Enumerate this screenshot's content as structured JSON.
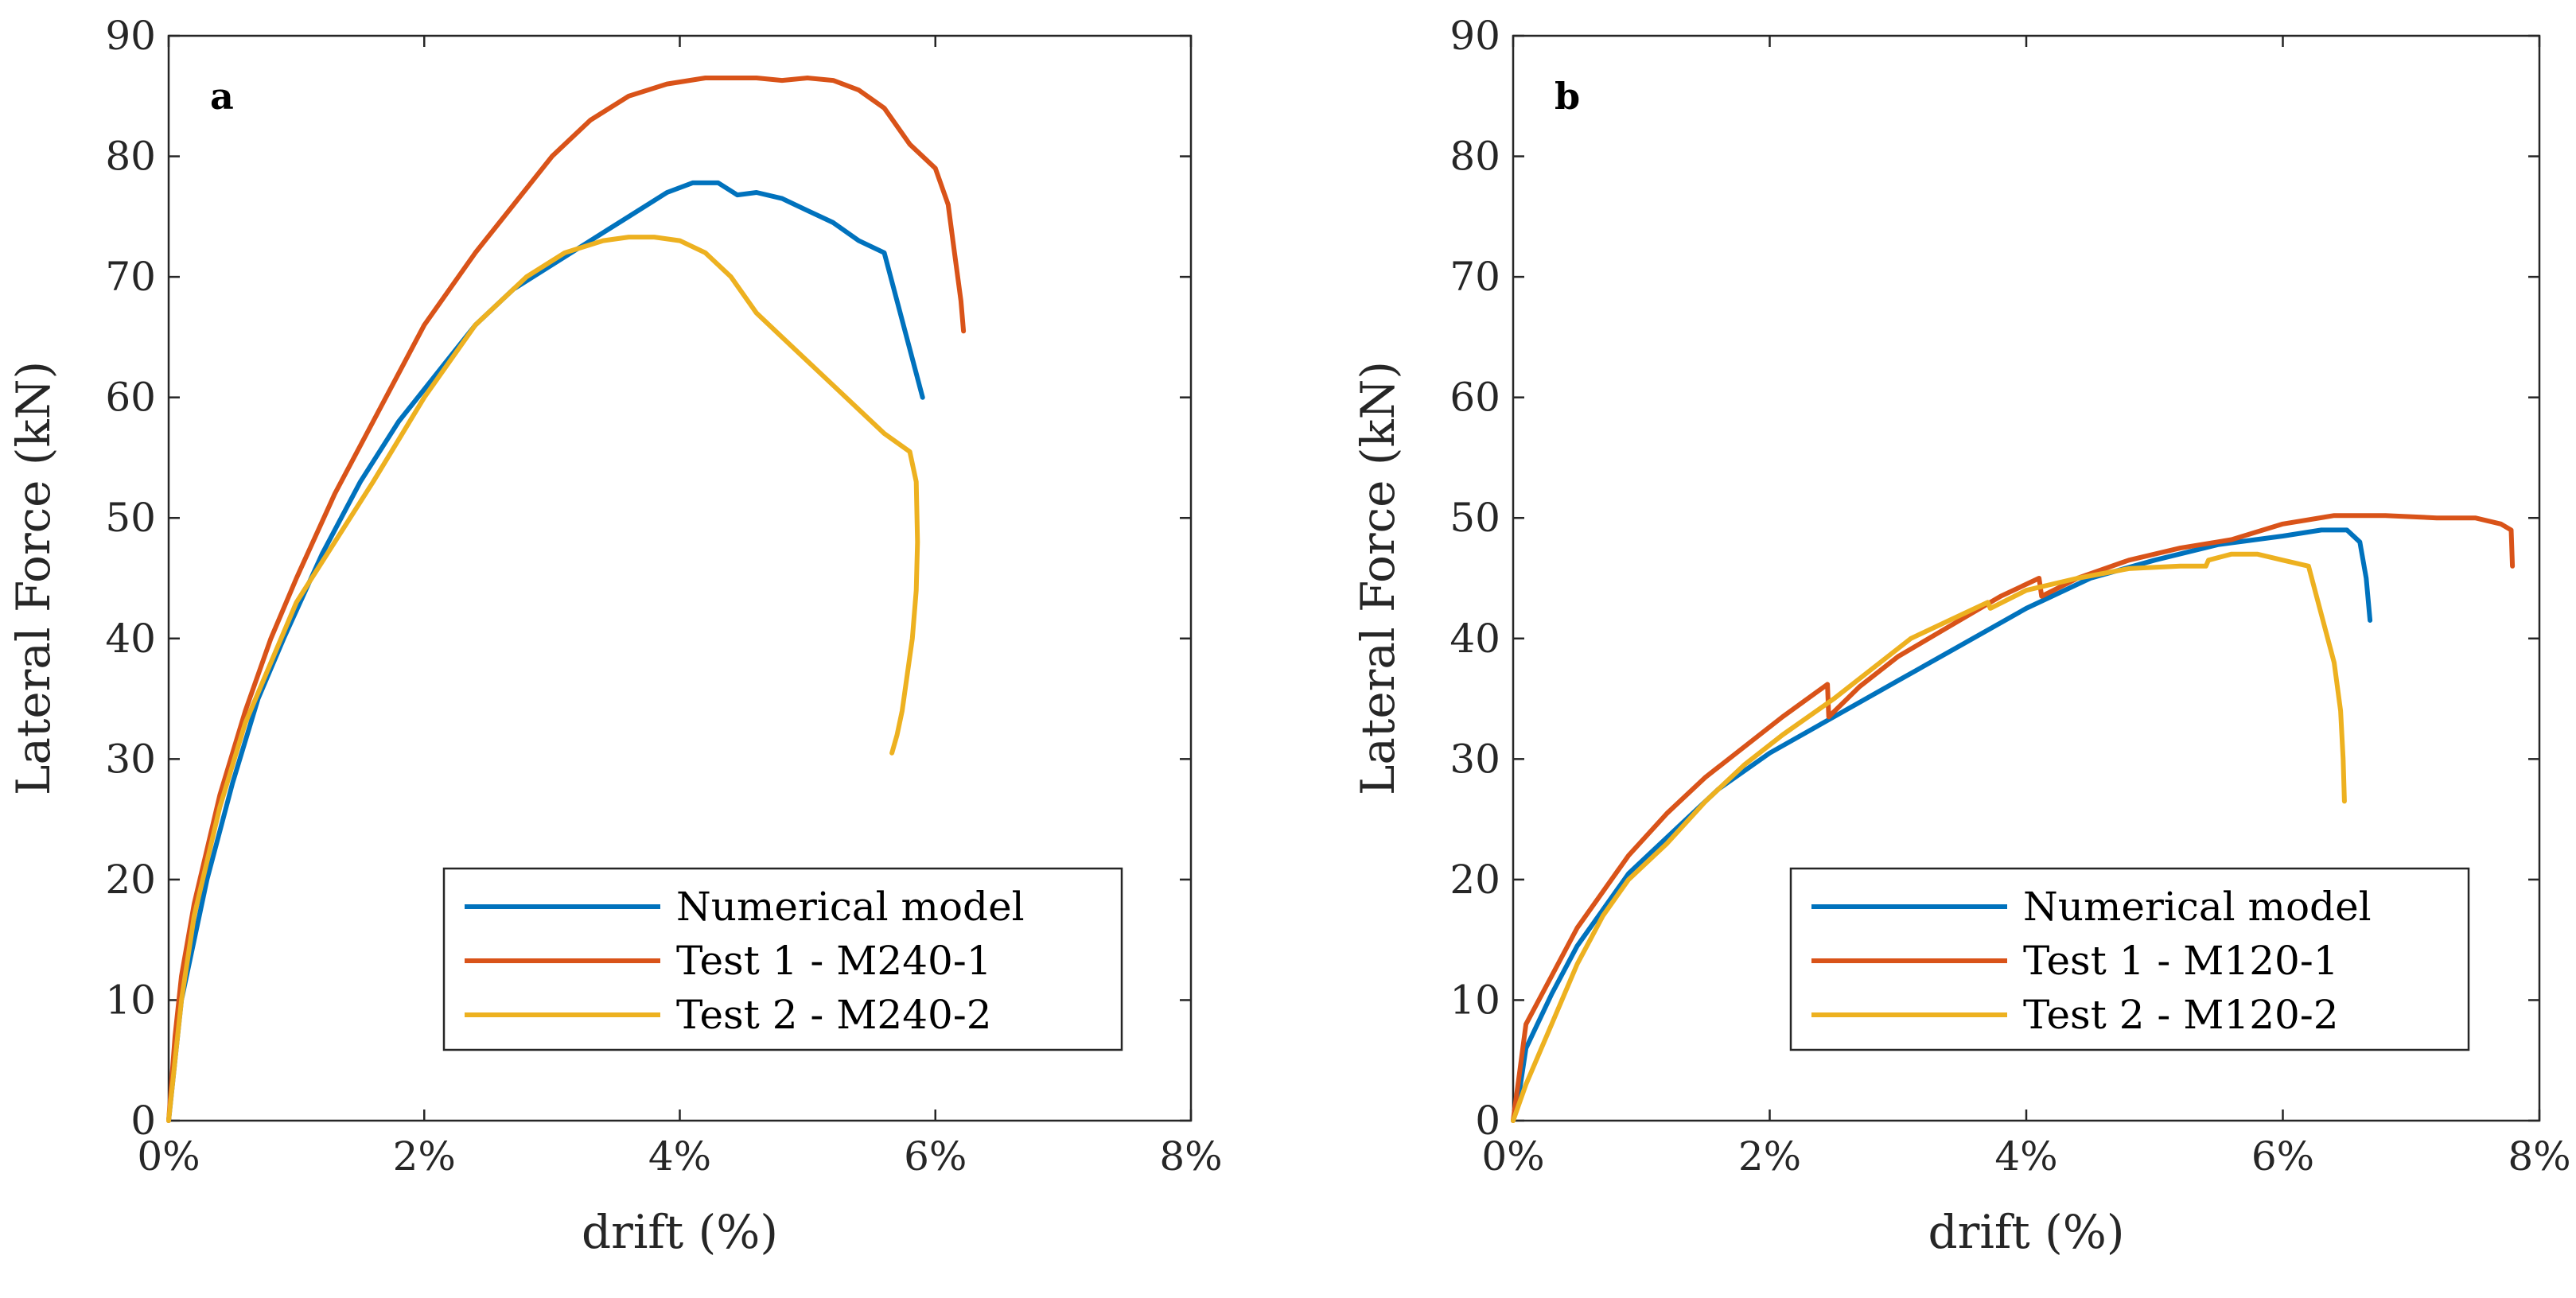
{
  "chart_data": [
    {
      "type": "line",
      "panel_label": "a",
      "xlabel": "drift (%)",
      "ylabel": "Lateral Force (kN)",
      "xlim": [
        0,
        8
      ],
      "ylim": [
        0,
        90
      ],
      "xticks": [
        0,
        2,
        4,
        6,
        8
      ],
      "xtick_labels": [
        "0%",
        "2%",
        "4%",
        "6%",
        "8%"
      ],
      "yticks": [
        0,
        10,
        20,
        30,
        40,
        50,
        60,
        70,
        80,
        90
      ],
      "ytick_labels": [
        "0",
        "10",
        "20",
        "30",
        "40",
        "50",
        "60",
        "70",
        "80",
        "90"
      ],
      "grid": false,
      "legend_position": "bottom-right",
      "series": [
        {
          "name": "Numerical model",
          "color": "#0072BD",
          "x": [
            0,
            0.05,
            0.1,
            0.2,
            0.3,
            0.5,
            0.7,
            0.9,
            1.2,
            1.5,
            1.8,
            2.1,
            2.4,
            2.7,
            3.0,
            3.3,
            3.6,
            3.9,
            4.1,
            4.3,
            4.45,
            4.6,
            4.8,
            5.0,
            5.2,
            5.4,
            5.6,
            5.75,
            5.9
          ],
          "y": [
            0,
            5,
            10,
            15,
            20,
            28,
            35,
            40,
            47,
            53,
            58,
            62,
            66,
            69,
            71,
            73,
            75,
            77,
            77.8,
            77.8,
            76.8,
            77,
            76.5,
            75.5,
            74.5,
            73,
            72,
            66,
            60
          ]
        },
        {
          "name": "Test 1 - M240-1",
          "color": "#D95319",
          "x": [
            0,
            0.05,
            0.1,
            0.2,
            0.4,
            0.6,
            0.8,
            1.0,
            1.3,
            1.6,
            2.0,
            2.4,
            2.7,
            3.0,
            3.3,
            3.6,
            3.9,
            4.2,
            4.45,
            4.6,
            4.8,
            5.0,
            5.2,
            5.4,
            5.6,
            5.8,
            5.9,
            6.0,
            6.1,
            6.15,
            6.2,
            6.22
          ],
          "y": [
            0,
            7,
            12,
            18,
            27,
            34,
            40,
            45,
            52,
            58,
            66,
            72,
            76,
            80,
            83,
            85,
            86,
            86.5,
            86.5,
            86.5,
            86.3,
            86.5,
            86.3,
            85.5,
            84,
            81,
            80,
            79,
            76,
            72,
            68,
            65.5
          ]
        },
        {
          "name": "Test 2 - M240-2",
          "color": "#EDB120",
          "x": [
            0,
            0.05,
            0.1,
            0.2,
            0.4,
            0.6,
            0.8,
            1.0,
            1.3,
            1.6,
            2.0,
            2.4,
            2.8,
            3.1,
            3.4,
            3.6,
            3.8,
            4.0,
            4.2,
            4.4,
            4.6,
            4.8,
            5.0,
            5.2,
            5.4,
            5.6,
            5.8,
            5.85,
            5.86,
            5.85,
            5.82,
            5.78,
            5.74,
            5.7,
            5.66
          ],
          "y": [
            0,
            5,
            10,
            17,
            26,
            33,
            38,
            43,
            48,
            53,
            60,
            66,
            70,
            72,
            73,
            73.3,
            73.3,
            73,
            72,
            70,
            67,
            65,
            63,
            61,
            59,
            57,
            55.5,
            53,
            48,
            44,
            40,
            37,
            34,
            32,
            30.5
          ]
        }
      ]
    },
    {
      "type": "line",
      "panel_label": "b",
      "xlabel": "drift (%)",
      "ylabel": "Lateral Force (kN)",
      "xlim": [
        0,
        8
      ],
      "ylim": [
        0,
        90
      ],
      "xticks": [
        0,
        2,
        4,
        6,
        8
      ],
      "xtick_labels": [
        "0%",
        "2%",
        "4%",
        "6%",
        "8%"
      ],
      "yticks": [
        0,
        10,
        20,
        30,
        40,
        50,
        60,
        70,
        80,
        90
      ],
      "ytick_labels": [
        "0",
        "10",
        "20",
        "30",
        "40",
        "50",
        "60",
        "70",
        "80",
        "90"
      ],
      "grid": false,
      "legend_position": "bottom-right",
      "series": [
        {
          "name": "Numerical model",
          "color": "#0072BD",
          "x": [
            0,
            0.05,
            0.1,
            0.3,
            0.5,
            0.7,
            0.9,
            1.1,
            1.3,
            1.6,
            2.0,
            2.5,
            3.0,
            3.5,
            4.0,
            4.5,
            5.0,
            5.5,
            6.0,
            6.3,
            6.5,
            6.6,
            6.65,
            6.68
          ],
          "y": [
            0,
            2.5,
            6,
            10.5,
            14.5,
            17.5,
            20.5,
            22.5,
            24.5,
            27.5,
            30.5,
            33.5,
            36.5,
            39.5,
            42.5,
            45,
            46.5,
            47.8,
            48.5,
            49,
            49,
            48,
            45,
            41.5
          ]
        },
        {
          "name": "Test 1 - M120-1",
          "color": "#D95319",
          "x": [
            0,
            0.05,
            0.1,
            0.3,
            0.5,
            0.7,
            0.9,
            1.2,
            1.5,
            1.8,
            2.1,
            2.45,
            2.46,
            2.7,
            3.0,
            3.4,
            3.8,
            4.1,
            4.12,
            4.4,
            4.8,
            5.2,
            5.6,
            6.0,
            6.4,
            6.8,
            7.2,
            7.5,
            7.7,
            7.78,
            7.79
          ],
          "y": [
            0,
            4,
            8,
            12,
            16,
            19,
            22,
            25.5,
            28.5,
            31,
            33.5,
            36.2,
            33.5,
            36,
            38.5,
            41,
            43.5,
            45,
            43.5,
            45,
            46.5,
            47.5,
            48.2,
            49.5,
            50.2,
            50.2,
            50,
            50,
            49.5,
            49,
            46
          ]
        },
        {
          "name": "Test 2 - M120-2",
          "color": "#EDB120",
          "x": [
            0,
            0.1,
            0.3,
            0.5,
            0.6,
            0.7,
            0.9,
            1.2,
            1.5,
            1.8,
            2.1,
            2.5,
            2.8,
            3.1,
            3.4,
            3.7,
            3.72,
            4.0,
            4.4,
            4.8,
            5.2,
            5.4,
            5.42,
            5.6,
            5.8,
            6.0,
            6.2,
            6.3,
            6.4,
            6.45,
            6.47,
            6.48
          ],
          "y": [
            0,
            3,
            8,
            13,
            15,
            17,
            20,
            23,
            26.5,
            29.5,
            32,
            35,
            37.5,
            40,
            41.5,
            43,
            42.5,
            44,
            45,
            45.8,
            46,
            46,
            46.5,
            47,
            47,
            46.5,
            46,
            42,
            38,
            34,
            30,
            26.5
          ]
        }
      ]
    }
  ]
}
